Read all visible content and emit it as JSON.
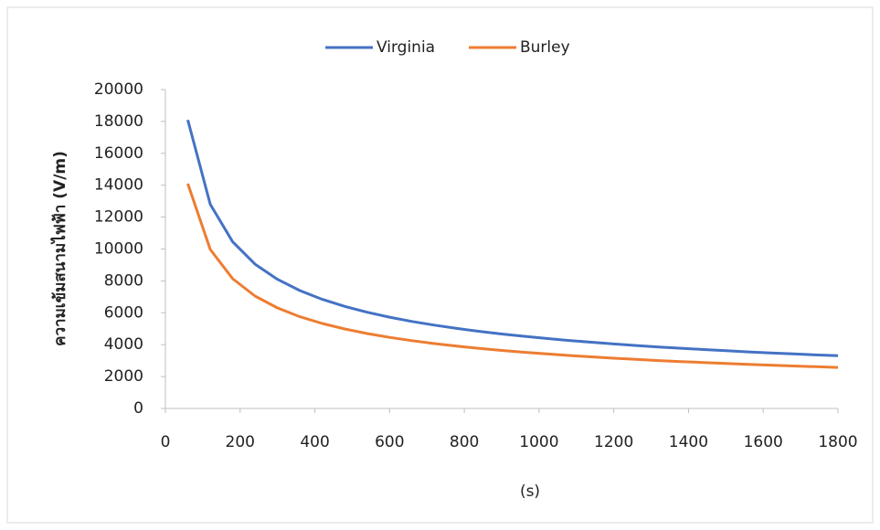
{
  "chart_data": {
    "type": "line",
    "x_label": "(s)",
    "y_label": "ความเข้มสนามไฟฟ้า (V/m)",
    "x": [
      60,
      120,
      180,
      240,
      300,
      360,
      420,
      480,
      540,
      600,
      660,
      720,
      780,
      840,
      900,
      960,
      1020,
      1080,
      1140,
      1200,
      1260,
      1320,
      1380,
      1440,
      1500,
      1560,
      1620,
      1680,
      1740,
      1800
    ],
    "series": [
      {
        "name": "Virginia",
        "color": "#4472c4",
        "values": [
          18100,
          12800,
          10450,
          9050,
          8095,
          7390,
          6840,
          6400,
          6033,
          5724,
          5457,
          5225,
          5020,
          4837,
          4673,
          4525,
          4390,
          4266,
          4152,
          4047,
          3950,
          3859,
          3774,
          3695,
          3620,
          3550,
          3483,
          3420,
          3361,
          3304
        ]
      },
      {
        "name": "Burley",
        "color": "#ed7d31",
        "values": [
          14100,
          9970,
          8140,
          7050,
          6305,
          5755,
          5330,
          4985,
          4700,
          4460,
          4250,
          4070,
          3910,
          3770,
          3640,
          3525,
          3420,
          3325,
          3235,
          3150,
          3075,
          3005,
          2940,
          2880,
          2820,
          2765,
          2715,
          2665,
          2620,
          2575
        ]
      }
    ],
    "xlim": [
      0,
      1800
    ],
    "xticks": [
      0,
      200,
      400,
      600,
      800,
      1000,
      1200,
      1400,
      1600,
      1800
    ],
    "ylim": [
      0,
      20000
    ],
    "yticks": [
      0,
      2000,
      4000,
      6000,
      8000,
      10000,
      12000,
      14000,
      16000,
      18000,
      20000
    ],
    "legend": "top",
    "grid": false
  }
}
